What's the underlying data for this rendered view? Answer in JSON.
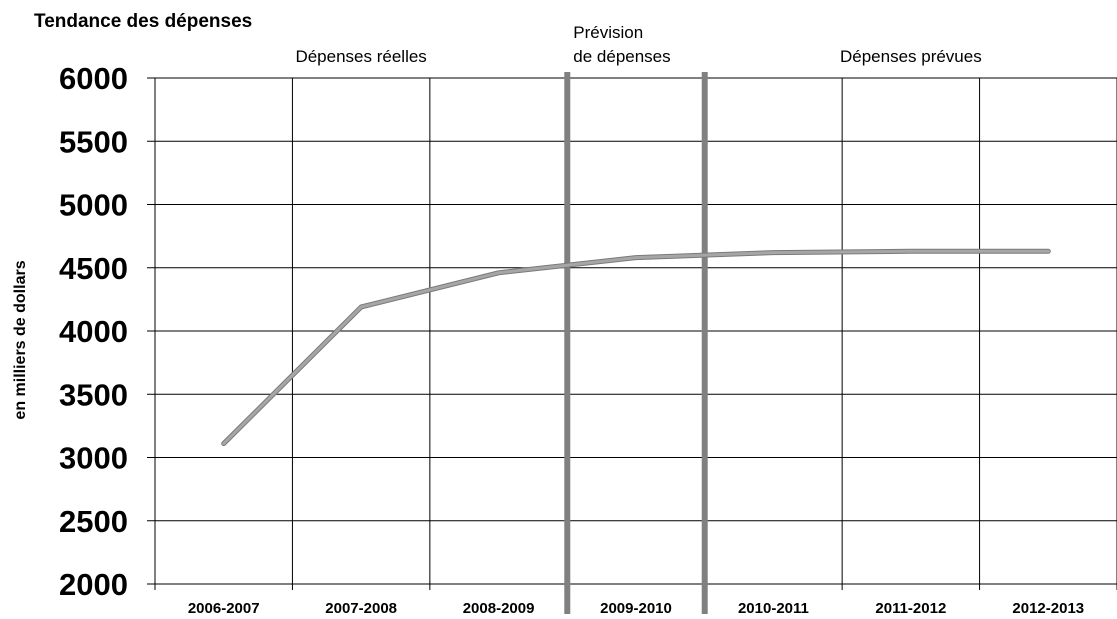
{
  "chart_data": {
    "type": "line",
    "title": "Tendance des dépenses",
    "ylabel": "en milliers de dollars",
    "xlabel": "",
    "categories": [
      "2006-2007",
      "2007-2008",
      "2008-2009",
      "2009-2010",
      "2010-2011",
      "2011-2012",
      "2012-2013"
    ],
    "series": [
      {
        "values": [
          3110,
          4190,
          4460,
          4580,
          4620,
          4630,
          4630
        ]
      }
    ],
    "ylim": [
      2000,
      6000
    ],
    "yticks": [
      2000,
      2500,
      3000,
      3500,
      4000,
      4500,
      5000,
      5500,
      6000
    ],
    "grid": true,
    "regions": [
      {
        "lines": [
          "Dépenses réelles"
        ]
      },
      {
        "lines": [
          "Prévision",
          "de dépenses"
        ]
      },
      {
        "lines": [
          "Dépenses prévues"
        ]
      }
    ],
    "colors": {
      "line": "#a6a6a6",
      "separator": "#808080",
      "grid": "#000000"
    }
  }
}
